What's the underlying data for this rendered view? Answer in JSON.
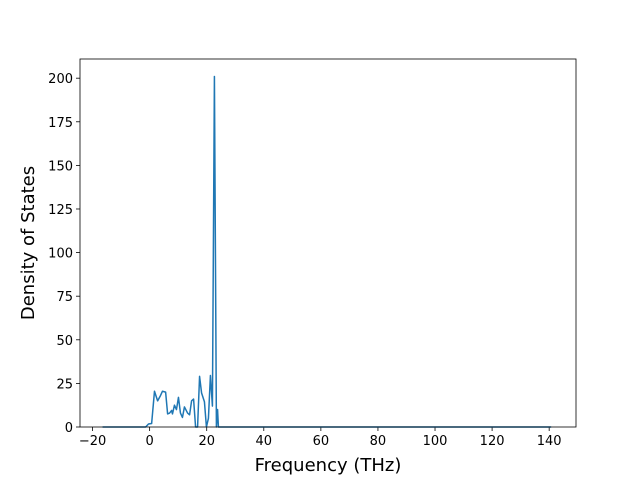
{
  "chart_data": {
    "type": "line",
    "xlabel": "Frequency (THz)",
    "ylabel": "Density of States",
    "x": [
      -16.5,
      -1.4,
      -0.4,
      0.7,
      1.7,
      2.8,
      3.8,
      4.5,
      5.6,
      6.3,
      7.0,
      7.7,
      8.0,
      8.7,
      9.4,
      10.1,
      10.8,
      11.5,
      12.2,
      13.3,
      14.0,
      14.7,
      15.4,
      16.1,
      16.8,
      17.5,
      18.2,
      19.2,
      19.9,
      20.6,
      21.3,
      22.0,
      22.7,
      23.4,
      23.8,
      24.1,
      140.7
    ],
    "series": [
      {
        "color": "#1f77b4",
        "values": [
          0,
          0,
          1.7,
          2,
          20.5,
          15,
          18,
          20.5,
          20,
          7.5,
          8,
          9.5,
          7.5,
          12.5,
          10,
          17,
          8,
          5.5,
          11.5,
          8,
          7,
          15,
          16,
          0,
          0,
          29,
          19.5,
          14.5,
          0,
          5,
          29.5,
          12,
          201,
          0,
          10,
          0,
          0
        ]
      }
    ],
    "xlim": [
      -24.4,
      149.4
    ],
    "xticks": [
      {
        "value": -20,
        "label": "−20"
      },
      0,
      20,
      40,
      60,
      80,
      100,
      120,
      140
    ],
    "ylim": [
      0,
      211
    ],
    "yticks": [
      0,
      25,
      50,
      75,
      100,
      125,
      150,
      175,
      200
    ]
  }
}
